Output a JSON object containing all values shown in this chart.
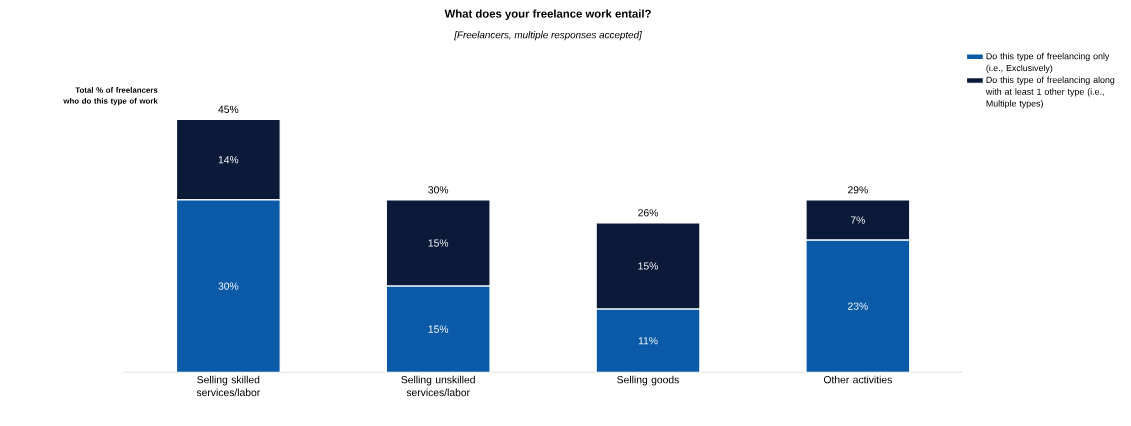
{
  "chart_data": {
    "type": "bar",
    "title": "What does your freelance work entail?",
    "subtitle": "[Freelancers, multiple responses accepted]",
    "categories": [
      "Selling skilled services/labor",
      "Selling unskilled services/labor",
      "Selling goods",
      "Other activities"
    ],
    "stacked": true,
    "legend": "top right",
    "series": [
      {
        "name": "Do this type of freelancing only (i.e., Exclusively)",
        "color": "#0b5aa8",
        "values": [
          30,
          15,
          11,
          23
        ],
        "value_labels": [
          "30%",
          "15%",
          "11%",
          "23%"
        ]
      },
      {
        "name": "Do this type of freelancing along with at least 1 other type (i.e., Multiple types)",
        "color": "#0c1a3a",
        "values": [
          14,
          15,
          15,
          7
        ],
        "value_labels": [
          "14%",
          "15%",
          "15%",
          "7%"
        ]
      }
    ],
    "totals": [
      "45%",
      "30%",
      "26%",
      "29%"
    ],
    "annotations": [
      "Total % of freelancers who do this type of work"
    ]
  }
}
